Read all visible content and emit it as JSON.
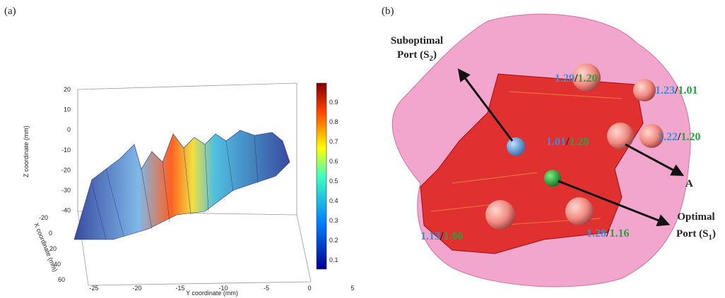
{
  "panel_a": {
    "label": "(a)",
    "z_axis": {
      "label": "Z coordinate (mm)",
      "ticks": [
        20,
        10,
        0,
        -10,
        -20,
        -30,
        -40
      ]
    },
    "x_axis": {
      "label": "X coordinate (mm)",
      "ticks": [
        -20,
        0,
        20,
        40,
        60
      ]
    },
    "y_axis": {
      "label": "Y coordinate (mm)",
      "ticks": [
        -25,
        -20,
        -15,
        -10,
        -5,
        0,
        5
      ]
    },
    "colorbar": {
      "ticks": [
        0.9,
        0.8,
        0.7,
        0.6,
        0.5,
        0.4,
        0.3,
        0.2,
        0.1
      ]
    }
  },
  "panel_b": {
    "label": "(b)",
    "separator": "/",
    "suboptimal": {
      "line1": "Suboptimal",
      "line2": "Port (S",
      "sub": "2",
      "close": ")"
    },
    "optimal": {
      "line1": "Optimal",
      "line2": "Port (S",
      "sub": "1",
      "close": ")"
    },
    "point_a": "A",
    "pairs": [
      {
        "blue": "1.29",
        "green": "1.20"
      },
      {
        "blue": "1.23",
        "green": "1.01"
      },
      {
        "blue": "1.01",
        "green": "1.28"
      },
      {
        "blue": "1.22",
        "green": "1.20"
      },
      {
        "blue": "1.13",
        "green": "1.06"
      },
      {
        "blue": "1.28",
        "green": "1.16"
      }
    ]
  }
}
